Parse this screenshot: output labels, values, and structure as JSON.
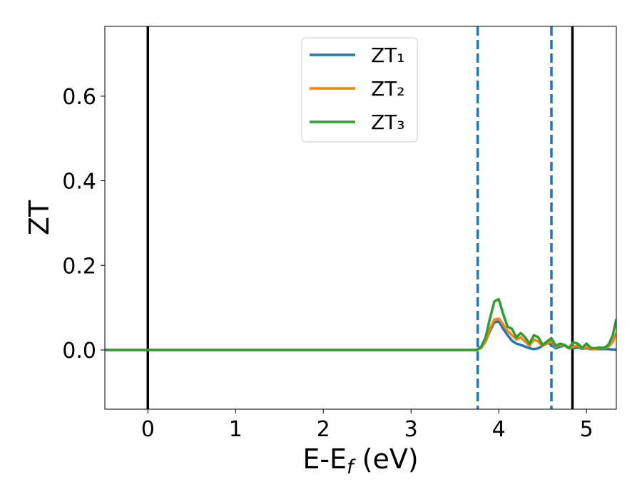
{
  "chart_data": {
    "type": "line",
    "ylabel": "ZT",
    "xlabel": [
      "E-E",
      "f",
      " (eV)"
    ],
    "xlim": [
      -0.49,
      5.34
    ],
    "ylim": [
      -0.14,
      0.765
    ],
    "xticks": [
      0,
      1,
      2,
      3,
      4,
      5
    ],
    "yticks": [
      {
        "value": 0,
        "label": "0.0"
      },
      0.2,
      0.4,
      0.6
    ],
    "legend": "upper center",
    "x": [
      -0.49,
      3.6,
      3.7,
      3.75,
      3.8,
      3.85,
      3.9,
      3.95,
      4.0,
      4.05,
      4.1,
      4.15,
      4.2,
      4.25,
      4.3,
      4.35,
      4.4,
      4.45,
      4.5,
      4.55,
      4.6,
      4.65,
      4.7,
      4.75,
      4.8,
      4.85,
      4.9,
      4.95,
      5.0,
      5.05,
      5.1,
      5.15,
      5.2,
      5.25,
      5.3,
      5.34
    ],
    "series": [
      {
        "name": "ZT₁",
        "color": "#1f77b4",
        "values": [
          0,
          0,
          0,
          0,
          0.005,
          0.02,
          0.045,
          0.065,
          0.068,
          0.05,
          0.035,
          0.022,
          0.015,
          0.012,
          0.008,
          0.004,
          0.002,
          0.004,
          0.01,
          0.018,
          0.012,
          0.004,
          0.008,
          0.01,
          0.004,
          0.004,
          0.006,
          0.003,
          0.004,
          0.002,
          0.002,
          0.002,
          0.002,
          0.002,
          0.001,
          0.001
        ]
      },
      {
        "name": "ZT₂",
        "color": "#ff7f0e",
        "values": [
          0,
          0,
          0,
          0,
          0.005,
          0.02,
          0.05,
          0.072,
          0.074,
          0.06,
          0.045,
          0.035,
          0.025,
          0.03,
          0.02,
          0.01,
          0.025,
          0.02,
          0.01,
          0.015,
          0.02,
          0.008,
          0.012,
          0.01,
          0.005,
          0.008,
          0.01,
          0.004,
          0.006,
          0.003,
          0.002,
          0.004,
          0.004,
          0.008,
          0.02,
          0.04
        ]
      },
      {
        "name": "ZT₃",
        "color": "#2ca02c",
        "values": [
          0,
          0,
          0,
          0,
          0.008,
          0.03,
          0.075,
          0.115,
          0.12,
          0.085,
          0.055,
          0.05,
          0.03,
          0.04,
          0.03,
          0.015,
          0.035,
          0.03,
          0.012,
          0.02,
          0.028,
          0.01,
          0.015,
          0.012,
          0.005,
          0.018,
          0.015,
          0.005,
          0.015,
          0.005,
          0.004,
          0.006,
          0.005,
          0.012,
          0.035,
          0.073
        ]
      }
    ],
    "vlines": [
      {
        "x": 0,
        "color": "#000000",
        "style": "solid"
      },
      {
        "x": 4.84,
        "color": "#000000",
        "style": "solid"
      },
      {
        "x": 3.76,
        "color": "#1f77b4",
        "style": "dashed"
      },
      {
        "x": 4.6,
        "color": "#1f77b4",
        "style": "dashed"
      }
    ]
  }
}
